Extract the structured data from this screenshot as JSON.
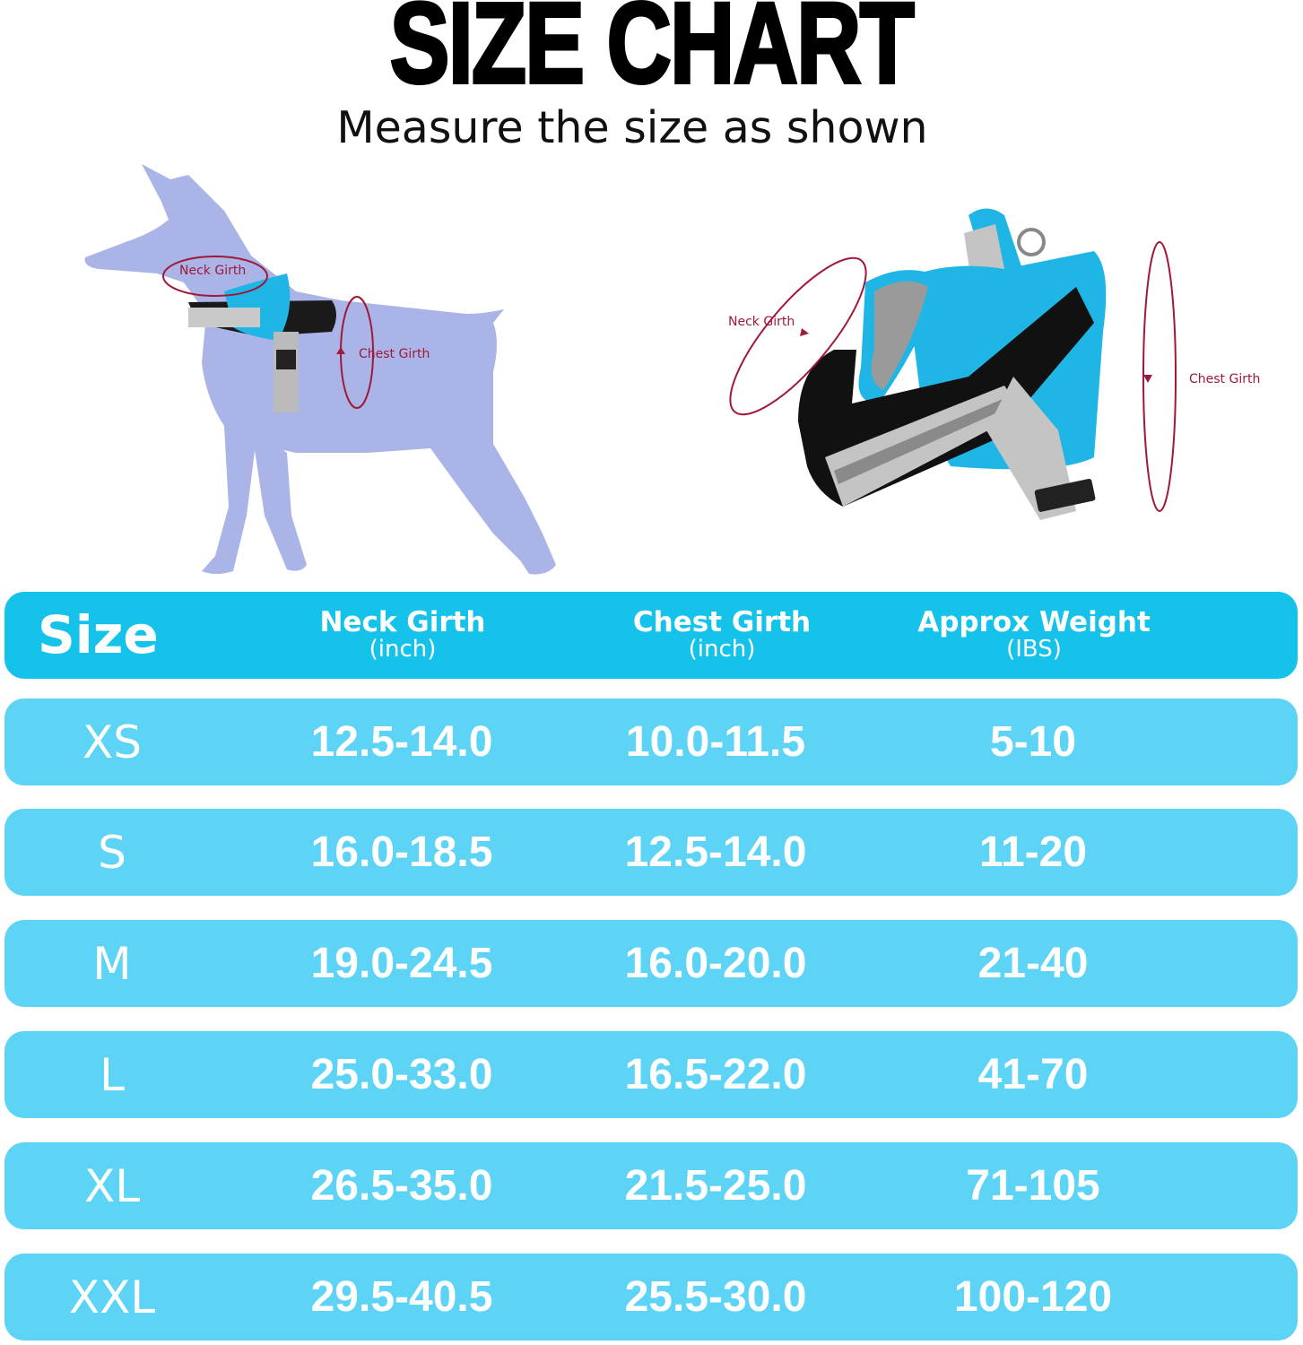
{
  "title": "SIZE CHART",
  "subtitle": "Measure the size as shown",
  "diagram_labels": {
    "neck": "Neck Girth",
    "chest": "Chest Girth"
  },
  "colors": {
    "header_bg": "#15c3ea",
    "row_bg": "#5dd3f5",
    "text": "#ffffff",
    "measure_line": "#a0193a",
    "dog_silhouette": "#aab4e6"
  },
  "table": {
    "headers": [
      {
        "label": "Size"
      },
      {
        "label": "Neck Girth",
        "unit": "(inch)"
      },
      {
        "label": "Chest Girth",
        "unit": "(inch)"
      },
      {
        "label": "Approx Weight",
        "unit": "(IBS)"
      }
    ],
    "rows": [
      [
        "XS",
        "12.5-14.0",
        "10.0-11.5",
        "5-10"
      ],
      [
        "S",
        "16.0-18.5",
        "12.5-14.0",
        "11-20"
      ],
      [
        "M",
        "19.0-24.5",
        "16.0-20.0",
        "21-40"
      ],
      [
        "L",
        "25.0-33.0",
        "16.5-22.0",
        "41-70"
      ],
      [
        "XL",
        "26.5-35.0",
        "21.5-25.0",
        "71-105"
      ],
      [
        "XXL",
        "29.5-40.5",
        "25.5-30.0",
        "100-120"
      ]
    ]
  }
}
